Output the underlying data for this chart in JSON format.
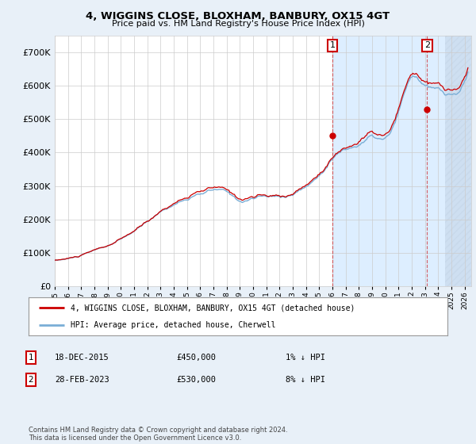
{
  "title": "4, WIGGINS CLOSE, BLOXHAM, BANBURY, OX15 4GT",
  "subtitle": "Price paid vs. HM Land Registry's House Price Index (HPI)",
  "ylim": [
    0,
    750000
  ],
  "xlim_start": 1995.0,
  "xlim_end": 2026.5,
  "hpi_color": "#7aaed6",
  "price_color": "#cc0000",
  "sale1_x": 2016.0,
  "sale1_y": 450000,
  "sale2_x": 2023.16,
  "sale2_y": 530000,
  "sale1_date": "18-DEC-2015",
  "sale1_price": "£450,000",
  "sale1_note": "1% ↓ HPI",
  "sale2_date": "28-FEB-2023",
  "sale2_price": "£530,000",
  "sale2_note": "8% ↓ HPI",
  "legend_line1": "4, WIGGINS CLOSE, BLOXHAM, BANBURY, OX15 4GT (detached house)",
  "legend_line2": "HPI: Average price, detached house, Cherwell",
  "footnote": "Contains HM Land Registry data © Crown copyright and database right 2024.\nThis data is licensed under the Open Government Licence v3.0.",
  "background_color": "#e8f0f8",
  "plot_bg_color": "#ffffff",
  "grid_color": "#cccccc",
  "shade_color": "#ddeeff",
  "hatch_color": "#c5d5e8"
}
